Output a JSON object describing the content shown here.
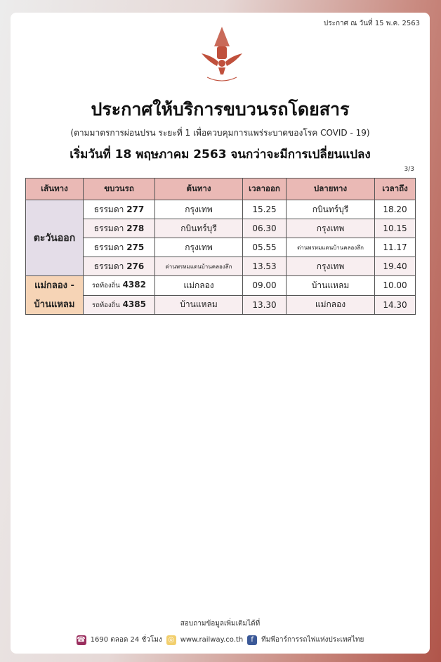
{
  "announce_date": "ประกาศ ณ วันที่ 15 พ.ค. 2563",
  "logo_text": "การรถไฟแห่งประเทศไทย",
  "title": "ประกาศให้บริการขบวนรถโดยสาร",
  "subtitle": "(ตามมาตรการผ่อนปรน ระยะที่ 1 เพื่อควบคุมการแพร่ระบาดของโรค COVID - 19)",
  "start": "เริ่มวันที่ 18 พฤษภาคม 2563 จนกว่าจะมีการเปลี่ยนแปลง",
  "page": "3/3",
  "colors": {
    "header": "#eab9b5",
    "east": "#e4dde8",
    "maeklong": "#f6d4b6",
    "accent": "#b0554a"
  },
  "table": {
    "headers": [
      "เส้นทาง",
      "ขบวนรถ",
      "ต้นทาง",
      "เวลาออก",
      "ปลายทาง",
      "เวลาถึง"
    ],
    "groups": [
      "ตะวันออก",
      "แม่กลอง - บ้านแหลม"
    ],
    "rows": [
      {
        "type": "ธรรมดา",
        "no": "277",
        "from": "กรุงเทพ",
        "dep": "15.25",
        "to": "กบินทร์บุรี",
        "arr": "18.20"
      },
      {
        "type": "ธรรมดา",
        "no": "278",
        "from": "กบินทร์บุรี",
        "dep": "06.30",
        "to": "กรุงเทพ",
        "arr": "10.15"
      },
      {
        "type": "ธรรมดา",
        "no": "275",
        "from": "กรุงเทพ",
        "dep": "05.55",
        "to": "ด่านพรหมแดนบ้านคลองลึก",
        "arr": "11.17"
      },
      {
        "type": "ธรรมดา",
        "no": "276",
        "from": "ด่านพรหมแดนบ้านคลองลึก",
        "dep": "13.53",
        "to": "กรุงเทพ",
        "arr": "19.40"
      },
      {
        "type": "รถท้องถิ่น",
        "no": "4382",
        "from": "แม่กลอง",
        "dep": "09.00",
        "to": "บ้านแหลม",
        "arr": "10.00"
      },
      {
        "type": "รถท้องถิ่น",
        "no": "4385",
        "from": "บ้านแหลม",
        "dep": "13.30",
        "to": "แม่กลอง",
        "arr": "14.30"
      }
    ]
  },
  "footer": {
    "inquiry": "สอบถามข้อมูลเพิ่มเติมได้ที่",
    "phone": "1690 ตลอด 24 ชั่วโมง",
    "web": "www.railway.co.th",
    "facebook": "ทีมพีอาร์การรถไฟแห่งประเทศไทย"
  }
}
